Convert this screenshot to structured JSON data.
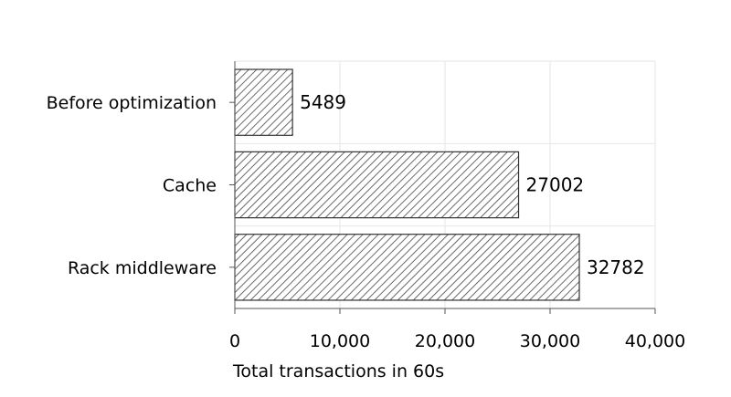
{
  "chart_data": {
    "type": "bar",
    "orientation": "horizontal",
    "categories": [
      "Before optimization",
      "Cache",
      "Rack middleware"
    ],
    "values": [
      5489,
      27002,
      32782
    ],
    "value_labels": [
      "5489",
      "27002",
      "32782"
    ],
    "title": "",
    "xlabel": "Total transactions in 60s",
    "ylabel": "",
    "xlim": [
      0,
      40000
    ],
    "x_ticks": [
      0,
      10000,
      20000,
      30000,
      40000
    ],
    "x_tick_labels": [
      "0",
      "10,000",
      "20,000",
      "30,000",
      "40,000"
    ],
    "grid": true,
    "legend": "none",
    "bar_fill": "hatched",
    "colors": {
      "bar_stroke": "#333333",
      "hatch": "#444444",
      "grid": "#e6e6e6",
      "axis": "#555555"
    }
  }
}
